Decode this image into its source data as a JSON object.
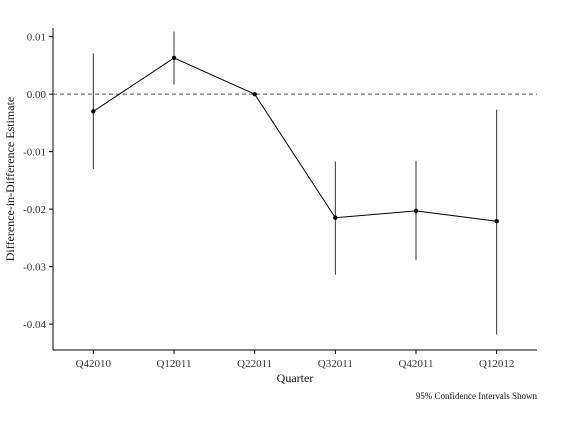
{
  "chart_data": {
    "type": "line",
    "title": "",
    "xlabel": "Quarter",
    "ylabel": "Difference-in-Difference Estimate",
    "caption": "95% Confidence Intervals Shown",
    "categories": [
      "Q42010",
      "Q12011",
      "Q22011",
      "Q32011",
      "Q42011",
      "Q12012"
    ],
    "series": [
      {
        "values": [
          -0.003,
          0.0063,
          0.0,
          -0.0215,
          -0.0203,
          -0.0221
        ],
        "ci_lower": [
          -0.013,
          0.0017,
          0.0,
          -0.0314,
          -0.0289,
          -0.0418
        ],
        "ci_upper": [
          0.0071,
          0.0109,
          0.0,
          -0.0117,
          -0.0116,
          -0.0027
        ]
      }
    ],
    "reference_line": {
      "y": 0.0,
      "style": "dashed"
    },
    "yticks": [
      0.01,
      0.0,
      -0.01,
      -0.02,
      -0.03,
      -0.04
    ],
    "ytick_labels": [
      "0.01",
      "0.00",
      "-0.01",
      "-0.02",
      "-0.03",
      "-0.04"
    ],
    "ylim": [
      -0.0445,
      0.0115
    ],
    "grid": false,
    "legend": "none",
    "colors": {
      "line": "#000000",
      "errorbar": "#333333",
      "axis": "#000000",
      "reference": "#555555"
    }
  }
}
